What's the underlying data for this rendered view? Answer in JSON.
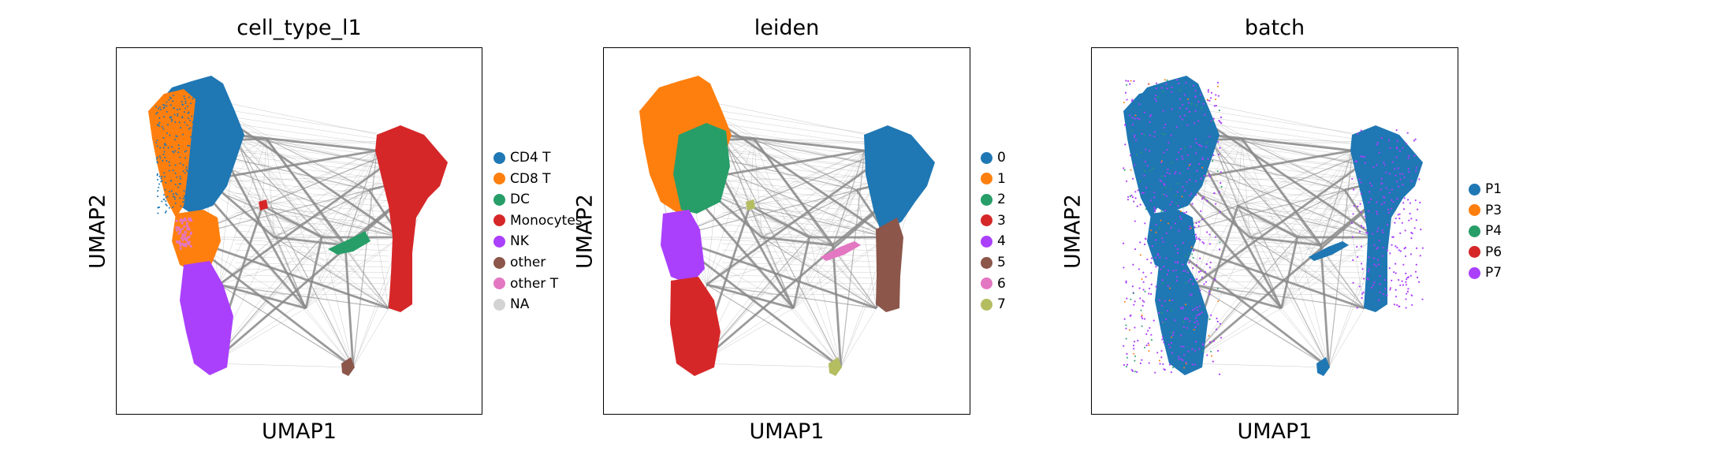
{
  "chart_data": [
    {
      "type": "scatter",
      "title": "cell_type_l1",
      "xlabel": "UMAP1",
      "ylabel": "UMAP2",
      "legend_placement": "right",
      "legend": [
        {
          "label": "CD4 T",
          "color": "#1f77b4"
        },
        {
          "label": "CD8 T",
          "color": "#ff7f0e"
        },
        {
          "label": "DC",
          "color": "#279e68"
        },
        {
          "label": "Monocytes",
          "color": "#d62728"
        },
        {
          "label": "NK",
          "color": "#aa40fc"
        },
        {
          "label": "other",
          "color": "#8c564b"
        },
        {
          "label": "other T",
          "color": "#e377c2"
        },
        {
          "label": "NA",
          "color": "#d3d3d3"
        }
      ]
    },
    {
      "type": "scatter",
      "title": "leiden",
      "xlabel": "UMAP1",
      "ylabel": "UMAP2",
      "legend_placement": "right",
      "legend": [
        {
          "label": "0",
          "color": "#1f77b4"
        },
        {
          "label": "1",
          "color": "#ff7f0e"
        },
        {
          "label": "2",
          "color": "#279e68"
        },
        {
          "label": "3",
          "color": "#d62728"
        },
        {
          "label": "4",
          "color": "#aa40fc"
        },
        {
          "label": "5",
          "color": "#8c564b"
        },
        {
          "label": "6",
          "color": "#e377c2"
        },
        {
          "label": "7",
          "color": "#b5bd61"
        }
      ]
    },
    {
      "type": "scatter",
      "title": "batch",
      "xlabel": "UMAP1",
      "ylabel": "UMAP2",
      "legend_placement": "right",
      "legend": [
        {
          "label": "P1",
          "color": "#1f77b4"
        },
        {
          "label": "P3",
          "color": "#ff7f0e"
        },
        {
          "label": "P4",
          "color": "#279e68"
        },
        {
          "label": "P6",
          "color": "#d62728"
        },
        {
          "label": "P7",
          "color": "#aa40fc"
        }
      ]
    }
  ]
}
